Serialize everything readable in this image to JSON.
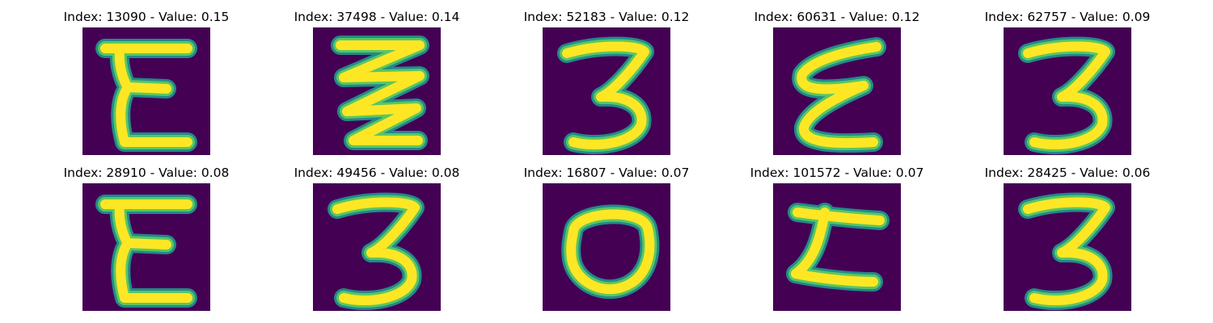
{
  "figure": {
    "colors": {
      "background": "#440154",
      "stroke_outer": "#21918c",
      "stroke_mid": "#5ec962",
      "stroke_core": "#fde725"
    },
    "panels": [
      {
        "title": "Index: 13090 - Value: 0.15",
        "glyph": "E-shape"
      },
      {
        "title": "Index: 37498 - Value: 0.14",
        "glyph": "zigzag"
      },
      {
        "title": "Index: 52183 - Value: 0.12",
        "glyph": "three"
      },
      {
        "title": "Index: 60631 - Value: 0.12",
        "glyph": "rotated-e"
      },
      {
        "title": "Index: 62757 - Value: 0.09",
        "glyph": "three"
      },
      {
        "title": "Index: 28910 - Value: 0.08",
        "glyph": "E-shape"
      },
      {
        "title": "Index: 49456 - Value: 0.08",
        "glyph": "three"
      },
      {
        "title": "Index: 16807 - Value: 0.07",
        "glyph": "zero"
      },
      {
        "title": "Index: 101572 - Value: 0.07",
        "glyph": "z-bar"
      },
      {
        "title": "Index: 28425 - Value: 0.06",
        "glyph": "three"
      }
    ]
  }
}
